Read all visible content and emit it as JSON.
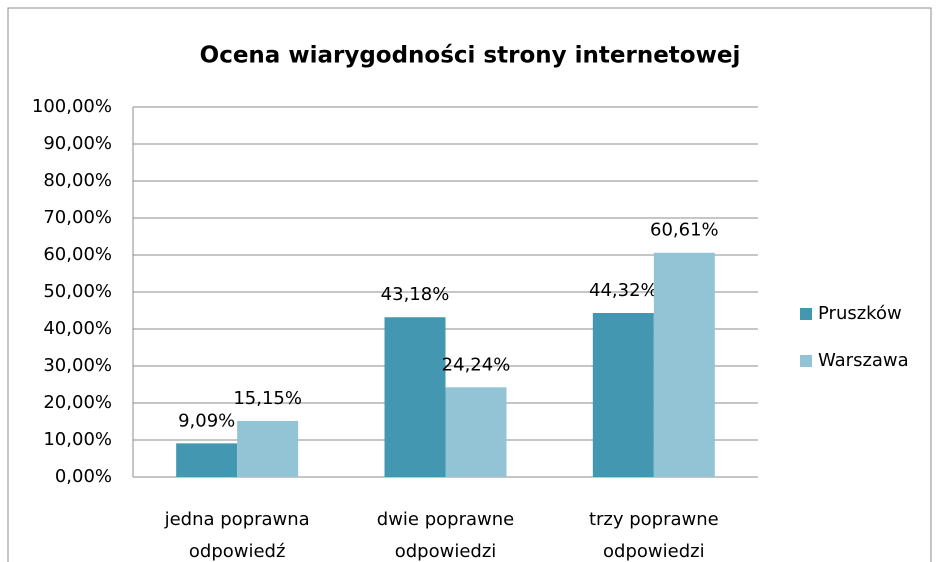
{
  "chart_data": {
    "type": "bar",
    "title": "Ocena wiarygodności strony internetowej",
    "categories": [
      "jedna poprawna odpowiedź",
      "dwie poprawne odpowiedzi",
      "trzy poprawne odpowiedzi"
    ],
    "series": [
      {
        "name": "Pruszków",
        "color": "#4397b1",
        "values": [
          9.09,
          43.18,
          44.32
        ],
        "value_labels": [
          "9,09%",
          "43,18%",
          "44,32%"
        ]
      },
      {
        "name": "Warszawa",
        "color": "#93c4d5",
        "values": [
          15.15,
          24.24,
          60.61
        ],
        "value_labels": [
          "15,15%",
          "24,24%",
          "60,61%"
        ]
      }
    ],
    "ylim": [
      0,
      100
    ],
    "yticks": [
      {
        "value": 0,
        "label": "0,00%"
      },
      {
        "value": 10,
        "label": "10,00%"
      },
      {
        "value": 20,
        "label": "20,00%"
      },
      {
        "value": 30,
        "label": "30,00%"
      },
      {
        "value": 40,
        "label": "40,00%"
      },
      {
        "value": 50,
        "label": "50,00%"
      },
      {
        "value": 60,
        "label": "60,00%"
      },
      {
        "value": 70,
        "label": "70,00%"
      },
      {
        "value": 80,
        "label": "80,00%"
      },
      {
        "value": 90,
        "label": "90,00%"
      },
      {
        "value": 100,
        "label": "100,00%"
      }
    ],
    "grid": true,
    "legend": "right"
  }
}
